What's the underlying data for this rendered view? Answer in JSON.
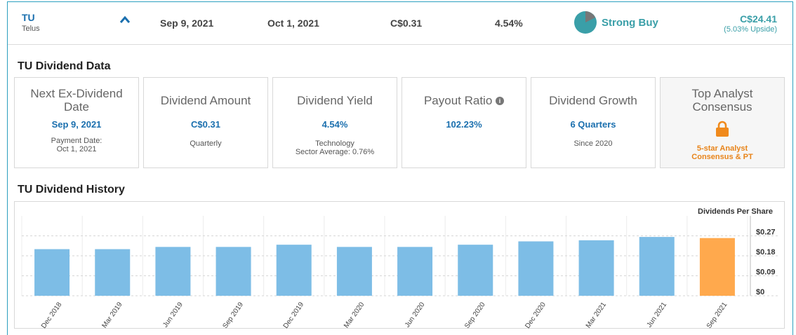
{
  "summary": {
    "symbol": "TU",
    "company": "Telus",
    "ex_dividend_date": "Sep 9, 2021",
    "payment_date": "Oct 1, 2021",
    "amount": "C$0.31",
    "yield": "4.54%",
    "rating": "Strong Buy",
    "price_target": "C$24.41",
    "upside": "(5.03% Upside)"
  },
  "dividend_data": {
    "heading": "TU Dividend Data",
    "cards": [
      {
        "title": "Next Ex-Dividend Date",
        "value": "Sep 9, 2021",
        "sub1": "Payment Date:",
        "sub2": "Oct 1, 2021"
      },
      {
        "title": "Dividend Amount",
        "value": "C$0.31",
        "sub1": "Quarterly",
        "sub2": ""
      },
      {
        "title": "Dividend Yield",
        "value": "4.54%",
        "sub1": "Technology",
        "sub2": "Sector Average: 0.76%"
      },
      {
        "title": "Payout Ratio",
        "value": "102.23%",
        "sub1": "",
        "sub2": ""
      },
      {
        "title": "Dividend Growth",
        "value": "6 Quarters",
        "sub1": "Since 2020",
        "sub2": ""
      },
      {
        "title": "Top Analyst Consensus",
        "value": "",
        "sub1": "5-star Analyst",
        "sub2": "Consensus & PT"
      }
    ]
  },
  "history": {
    "heading": "TU Dividend History"
  },
  "chart_data": {
    "type": "bar",
    "title": "",
    "ylabel": "Dividends Per Share",
    "categories": [
      "Dec 2018",
      "Mar 2019",
      "Jun 2019",
      "Sep 2019",
      "Dec 2019",
      "Mar 2020",
      "Jun 2020",
      "Sep 2020",
      "Dec 2020",
      "Mar 2021",
      "Jun 2021",
      "Sep 2021"
    ],
    "values": [
      0.21,
      0.21,
      0.22,
      0.22,
      0.23,
      0.22,
      0.22,
      0.23,
      0.245,
      0.25,
      0.265,
      0.26
    ],
    "highlight_index": 11,
    "yticks": [
      0,
      0.09,
      0.18,
      0.27
    ],
    "ytick_labels": [
      "$0",
      "$0.09",
      "$0.18",
      "$0.27"
    ],
    "ylim": [
      0,
      0.36
    ],
    "colors": {
      "bar": "#7dbde6",
      "highlight": "#ffa94d"
    }
  }
}
